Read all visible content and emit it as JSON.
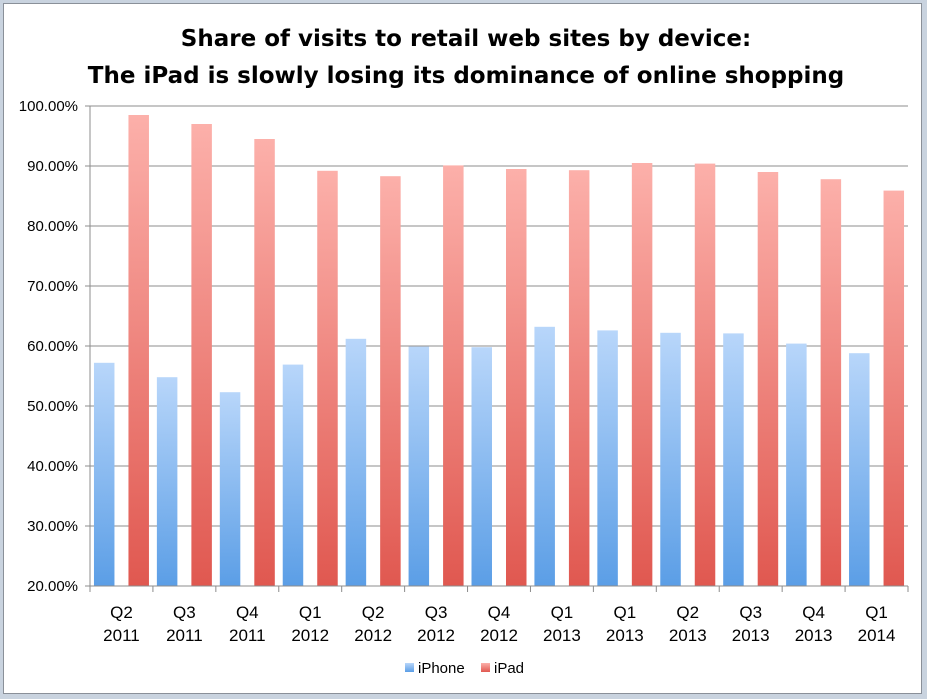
{
  "chart_data": {
    "type": "bar",
    "title": "Share of visits to retail web sites by device:",
    "subtitle": "The iPad is slowly losing its dominance of online shopping",
    "xlabel": "",
    "ylabel": "",
    "ylim": [
      20,
      100
    ],
    "ytick_step": 10,
    "ytick_labels": [
      "20.00%",
      "30.00%",
      "40.00%",
      "50.00%",
      "60.00%",
      "70.00%",
      "80.00%",
      "90.00%",
      "100.00%"
    ],
    "grid": true,
    "legend_position": "bottom",
    "categories": [
      [
        "Q2",
        "2011"
      ],
      [
        "Q3",
        "2011"
      ],
      [
        "Q4",
        "2011"
      ],
      [
        "Q1",
        "2012"
      ],
      [
        "Q2",
        "2012"
      ],
      [
        "Q3",
        "2012"
      ],
      [
        "Q4",
        "2012"
      ],
      [
        "Q1",
        "2013"
      ],
      [
        "Q1",
        "2013"
      ],
      [
        "Q2",
        "2013"
      ],
      [
        "Q3",
        "2013"
      ],
      [
        "Q4",
        "2013"
      ],
      [
        "Q1",
        "2014"
      ]
    ],
    "series": [
      {
        "name": "iPhone",
        "color": "#5b9ee6",
        "light_color": "#b8d6fa",
        "values": [
          57.2,
          54.8,
          52.3,
          56.9,
          61.2,
          59.9,
          59.8,
          63.2,
          62.6,
          62.2,
          62.1,
          60.4,
          58.8
        ]
      },
      {
        "name": "iPad",
        "color": "#e05850",
        "light_color": "#fcb0aa",
        "values": [
          98.5,
          97.0,
          94.5,
          89.2,
          88.3,
          90.1,
          89.5,
          89.3,
          90.5,
          90.4,
          89.0,
          87.8,
          85.9
        ]
      }
    ]
  }
}
